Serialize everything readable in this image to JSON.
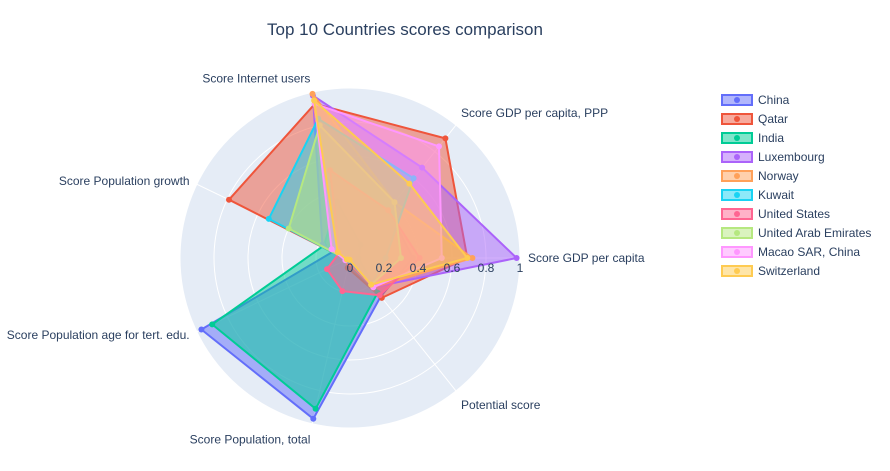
{
  "chart_data": {
    "type": "radar",
    "title": "Top 10 Countries scores comparison",
    "axes": [
      "Score GDP per capita",
      "Score GDP per capita, PPP",
      "Score Internet users",
      "Score Population growth",
      "Score Population age for tert. edu.",
      "Score Population, total",
      "Potential score"
    ],
    "radial_range": [
      0,
      1
    ],
    "radial_ticks": [
      "0",
      "0.2",
      "0.4",
      "0.6",
      "0.8",
      "1"
    ],
    "legend_position": "right",
    "series": [
      {
        "name": "China",
        "color": "#636efa",
        "values": [
          0.37,
          0.36,
          0.52,
          0.1,
          0.97,
          0.97,
          0.29
        ]
      },
      {
        "name": "Qatar",
        "color": "#EF553B",
        "values": [
          0.69,
          0.9,
          0.93,
          0.79,
          0.02,
          0.06,
          0.3
        ]
      },
      {
        "name": "India",
        "color": "#00cc96",
        "values": [
          0.05,
          0.1,
          0.34,
          0.17,
          0.9,
          0.91,
          0.26
        ]
      },
      {
        "name": "Luxembourg",
        "color": "#ab63fa",
        "values": [
          0.98,
          0.68,
          0.98,
          0.18,
          0.02,
          0.01,
          0.22
        ]
      },
      {
        "name": "Norway",
        "color": "#FFA15A",
        "values": [
          0.72,
          0.42,
          0.99,
          0.11,
          0.02,
          0.03,
          0.22
        ]
      },
      {
        "name": "Kuwait",
        "color": "#19d3f3",
        "values": [
          0.21,
          0.6,
          0.84,
          0.53,
          0.02,
          0.02,
          0.2
        ]
      },
      {
        "name": "United States",
        "color": "#FF6692",
        "values": [
          0.41,
          0.36,
          0.53,
          0.07,
          0.15,
          0.2,
          0.28
        ]
      },
      {
        "name": "United Arab Emirates",
        "color": "#B6E880",
        "values": [
          0.3,
          0.42,
          0.8,
          0.4,
          0.02,
          0.01,
          0.2
        ]
      },
      {
        "name": "Macao SAR, China",
        "color": "#FF97FF",
        "values": [
          0.54,
          0.84,
          0.93,
          0.12,
          0.03,
          0.01,
          0.22
        ]
      },
      {
        "name": "Switzerland",
        "color": "#FECB52",
        "values": [
          0.69,
          0.56,
          0.95,
          0.08,
          0.02,
          0.01,
          0.2
        ]
      }
    ]
  }
}
